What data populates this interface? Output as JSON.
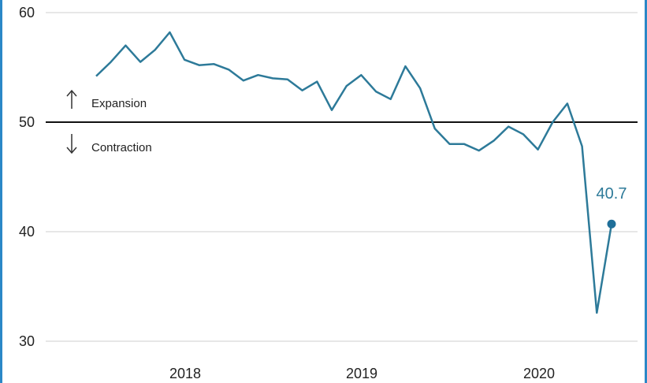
{
  "chart_data": {
    "type": "line",
    "title": "",
    "xlabel": "",
    "ylabel": "",
    "ylim": [
      30,
      60
    ],
    "yticks": [
      30,
      40,
      50,
      60
    ],
    "xticks": [
      "2018",
      "2019",
      "2020"
    ],
    "reference_line": 50,
    "annotations": {
      "expansion": "Expansion",
      "contraction": "Contraction"
    },
    "last_value_label": "40.7",
    "color": "#2d7a99",
    "series": [
      {
        "values": [
          54.2,
          55.5,
          57.0,
          55.5,
          56.6,
          58.2,
          55.7,
          55.2,
          55.3,
          54.8,
          53.8,
          54.3,
          54.0,
          53.9,
          52.9,
          53.7,
          51.1,
          53.3,
          54.3,
          52.8,
          52.1,
          55.1,
          53.1,
          49.4,
          48.0,
          48.0,
          47.4,
          48.3,
          49.6,
          48.9,
          47.5,
          50.0,
          51.7,
          47.8,
          32.6,
          40.7
        ]
      }
    ]
  }
}
